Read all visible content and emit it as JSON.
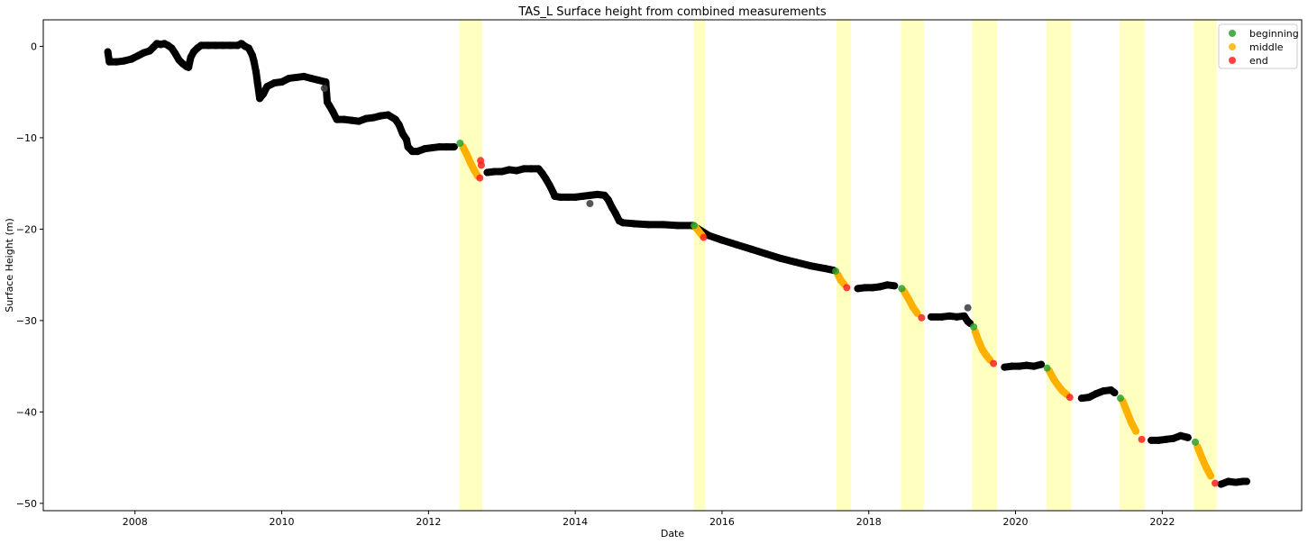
{
  "chart_data": {
    "type": "scatter",
    "title": "TAS_L Surface height from combined measurements",
    "xlabel": "Date",
    "ylabel": "Surface Height (m)",
    "xlim": [
      2006.75,
      2023.9
    ],
    "ylim": [
      -50.8,
      2.9
    ],
    "x_ticks": [
      2008,
      2010,
      2012,
      2014,
      2016,
      2018,
      2020,
      2022
    ],
    "y_ticks": [
      0,
      -10,
      -20,
      -30,
      -40,
      -50
    ],
    "legend_position": "top-right",
    "colors": {
      "background_series": "#000000",
      "outlier": "#444444",
      "beginning": "#2ca02c",
      "middle": "#ffb000",
      "end": "#ff2020",
      "highlight": "#ffffc0"
    },
    "highlight_periods": [
      [
        2012.42,
        2012.73
      ],
      [
        2015.62,
        2015.77
      ],
      [
        2017.56,
        2017.76
      ],
      [
        2018.44,
        2018.75
      ],
      [
        2019.41,
        2019.75
      ],
      [
        2020.42,
        2020.76
      ],
      [
        2021.42,
        2021.76
      ],
      [
        2022.43,
        2022.74
      ]
    ],
    "legend": [
      {
        "key": "beginning",
        "label": "beginning"
      },
      {
        "key": "middle",
        "label": "middle"
      },
      {
        "key": "end",
        "label": "end"
      }
    ],
    "series": [
      {
        "key": "background",
        "points": [
          [
            2007.63,
            -0.6
          ],
          [
            2007.65,
            -1.7
          ],
          [
            2007.75,
            -1.7
          ],
          [
            2007.85,
            -1.6
          ],
          [
            2007.95,
            -1.4
          ],
          [
            2008.05,
            -1.0
          ],
          [
            2008.12,
            -0.7
          ],
          [
            2008.2,
            -0.5
          ],
          [
            2008.25,
            -0.1
          ],
          [
            2008.3,
            0.3
          ],
          [
            2008.35,
            0.2
          ],
          [
            2008.4,
            0.3
          ],
          [
            2008.45,
            0.1
          ],
          [
            2008.5,
            -0.2
          ],
          [
            2008.55,
            -0.8
          ],
          [
            2008.6,
            -1.5
          ],
          [
            2008.65,
            -1.9
          ],
          [
            2008.7,
            -2.2
          ],
          [
            2008.73,
            -2.3
          ],
          [
            2008.76,
            -1.2
          ],
          [
            2008.8,
            -0.6
          ],
          [
            2008.85,
            -0.2
          ],
          [
            2008.9,
            0.1
          ],
          [
            2009.0,
            0.1
          ],
          [
            2009.1,
            0.1
          ],
          [
            2009.2,
            0.1
          ],
          [
            2009.3,
            0.1
          ],
          [
            2009.4,
            0.1
          ],
          [
            2009.45,
            0.3
          ],
          [
            2009.5,
            0.0
          ],
          [
            2009.55,
            -0.2
          ],
          [
            2009.6,
            -1.0
          ],
          [
            2009.62,
            -1.6
          ],
          [
            2009.65,
            -2.8
          ],
          [
            2009.67,
            -4.0
          ],
          [
            2009.7,
            -5.7
          ],
          [
            2009.75,
            -5.2
          ],
          [
            2009.8,
            -4.4
          ],
          [
            2009.9,
            -4.0
          ],
          [
            2010.0,
            -3.9
          ],
          [
            2010.1,
            -3.5
          ],
          [
            2010.2,
            -3.4
          ],
          [
            2010.3,
            -3.3
          ],
          [
            2010.4,
            -3.5
          ],
          [
            2010.5,
            -3.7
          ],
          [
            2010.6,
            -3.9
          ],
          [
            2010.62,
            -6.1
          ],
          [
            2010.65,
            -6.5
          ],
          [
            2010.7,
            -7.2
          ],
          [
            2010.75,
            -8.0
          ],
          [
            2010.85,
            -8.0
          ],
          [
            2010.95,
            -8.1
          ],
          [
            2011.05,
            -8.2
          ],
          [
            2011.15,
            -7.9
          ],
          [
            2011.25,
            -7.8
          ],
          [
            2011.35,
            -7.6
          ],
          [
            2011.45,
            -7.5
          ],
          [
            2011.55,
            -8.0
          ],
          [
            2011.6,
            -8.6
          ],
          [
            2011.65,
            -9.6
          ],
          [
            2011.7,
            -10.2
          ],
          [
            2011.72,
            -11.0
          ],
          [
            2011.78,
            -11.5
          ],
          [
            2011.85,
            -11.5
          ],
          [
            2011.95,
            -11.2
          ],
          [
            2012.05,
            -11.1
          ],
          [
            2012.15,
            -11.0
          ],
          [
            2012.25,
            -11.0
          ],
          [
            2012.35,
            -11.0
          ],
          [
            2012.8,
            -13.8
          ],
          [
            2012.9,
            -13.7
          ],
          [
            2013.0,
            -13.7
          ],
          [
            2013.1,
            -13.5
          ],
          [
            2013.2,
            -13.6
          ],
          [
            2013.3,
            -13.4
          ],
          [
            2013.4,
            -13.4
          ],
          [
            2013.5,
            -13.4
          ],
          [
            2013.55,
            -13.9
          ],
          [
            2013.6,
            -14.5
          ],
          [
            2013.65,
            -15.2
          ],
          [
            2013.7,
            -16.0
          ],
          [
            2013.72,
            -16.4
          ],
          [
            2013.8,
            -16.5
          ],
          [
            2013.9,
            -16.5
          ],
          [
            2014.0,
            -16.5
          ],
          [
            2014.1,
            -16.4
          ],
          [
            2014.2,
            -16.3
          ],
          [
            2014.3,
            -16.2
          ],
          [
            2014.4,
            -16.3
          ],
          [
            2014.45,
            -16.8
          ],
          [
            2014.5,
            -17.6
          ],
          [
            2014.55,
            -18.3
          ],
          [
            2014.6,
            -19.1
          ],
          [
            2014.65,
            -19.3
          ],
          [
            2014.8,
            -19.4
          ],
          [
            2015.0,
            -19.5
          ],
          [
            2015.2,
            -19.5
          ],
          [
            2015.4,
            -19.6
          ],
          [
            2015.6,
            -19.6
          ],
          [
            2015.82,
            -20.7
          ],
          [
            2016.0,
            -21.2
          ],
          [
            2016.2,
            -21.7
          ],
          [
            2016.4,
            -22.2
          ],
          [
            2016.6,
            -22.7
          ],
          [
            2016.8,
            -23.2
          ],
          [
            2017.0,
            -23.6
          ],
          [
            2017.2,
            -24.0
          ],
          [
            2017.4,
            -24.3
          ],
          [
            2017.52,
            -24.5
          ],
          [
            2017.85,
            -26.5
          ],
          [
            2017.95,
            -26.4
          ],
          [
            2018.05,
            -26.4
          ],
          [
            2018.15,
            -26.3
          ],
          [
            2018.25,
            -26.1
          ],
          [
            2018.35,
            -26.2
          ],
          [
            2018.85,
            -29.6
          ],
          [
            2019.0,
            -29.6
          ],
          [
            2019.1,
            -29.5
          ],
          [
            2019.2,
            -29.6
          ],
          [
            2019.3,
            -29.5
          ],
          [
            2019.35,
            -30.1
          ],
          [
            2019.38,
            -30.3
          ],
          [
            2019.85,
            -35.1
          ],
          [
            2019.95,
            -35.0
          ],
          [
            2020.05,
            -35.0
          ],
          [
            2020.15,
            -34.9
          ],
          [
            2020.25,
            -35.0
          ],
          [
            2020.35,
            -34.8
          ],
          [
            2020.9,
            -38.5
          ],
          [
            2021.0,
            -38.4
          ],
          [
            2021.1,
            -38.0
          ],
          [
            2021.2,
            -37.7
          ],
          [
            2021.3,
            -37.6
          ],
          [
            2021.35,
            -37.9
          ],
          [
            2021.85,
            -43.1
          ],
          [
            2021.95,
            -43.1
          ],
          [
            2022.05,
            -43.0
          ],
          [
            2022.15,
            -42.9
          ],
          [
            2022.25,
            -42.6
          ],
          [
            2022.35,
            -42.8
          ],
          [
            2022.8,
            -47.9
          ],
          [
            2022.9,
            -47.6
          ],
          [
            2023.0,
            -47.7
          ],
          [
            2023.1,
            -47.6
          ],
          [
            2023.15,
            -47.6
          ]
        ]
      },
      {
        "key": "outlier",
        "points": [
          [
            2010.58,
            -4.6
          ],
          [
            2014.2,
            -17.2
          ],
          [
            2019.35,
            -28.6
          ]
        ]
      },
      {
        "key": "middle",
        "points": [
          [
            2012.47,
            -11.0
          ],
          [
            2012.52,
            -11.8
          ],
          [
            2012.57,
            -12.7
          ],
          [
            2012.62,
            -13.5
          ],
          [
            2012.67,
            -14.2
          ],
          [
            2015.64,
            -19.8
          ],
          [
            2015.69,
            -20.3
          ],
          [
            2015.73,
            -20.7
          ],
          [
            2017.58,
            -25.0
          ],
          [
            2017.62,
            -25.6
          ],
          [
            2017.66,
            -26.0
          ],
          [
            2018.48,
            -26.8
          ],
          [
            2018.54,
            -27.6
          ],
          [
            2018.6,
            -28.5
          ],
          [
            2018.66,
            -29.2
          ],
          [
            2019.45,
            -31.2
          ],
          [
            2019.5,
            -32.3
          ],
          [
            2019.55,
            -33.2
          ],
          [
            2019.6,
            -33.8
          ],
          [
            2019.65,
            -34.3
          ],
          [
            2020.46,
            -35.5
          ],
          [
            2020.52,
            -36.4
          ],
          [
            2020.58,
            -37.1
          ],
          [
            2020.64,
            -37.7
          ],
          [
            2020.7,
            -38.1
          ],
          [
            2021.46,
            -38.8
          ],
          [
            2021.52,
            -40.0
          ],
          [
            2021.58,
            -41.2
          ],
          [
            2021.64,
            -42.1
          ],
          [
            2022.48,
            -43.8
          ],
          [
            2022.54,
            -45.0
          ],
          [
            2022.6,
            -46.1
          ],
          [
            2022.66,
            -47.0
          ]
        ]
      },
      {
        "key": "beginning",
        "points": [
          [
            2012.43,
            -10.6
          ],
          [
            2015.62,
            -19.6
          ],
          [
            2017.55,
            -24.6
          ],
          [
            2018.45,
            -26.5
          ],
          [
            2019.43,
            -30.7
          ],
          [
            2020.43,
            -35.2
          ],
          [
            2021.43,
            -38.5
          ],
          [
            2022.45,
            -43.3
          ]
        ]
      },
      {
        "key": "end",
        "points": [
          [
            2012.7,
            -14.4
          ],
          [
            2012.72,
            -13.0
          ],
          [
            2012.71,
            -12.5
          ],
          [
            2015.75,
            -20.9
          ],
          [
            2017.7,
            -26.4
          ],
          [
            2018.72,
            -29.7
          ],
          [
            2019.7,
            -34.7
          ],
          [
            2020.74,
            -38.4
          ],
          [
            2021.72,
            -43.0
          ],
          [
            2022.72,
            -47.8
          ]
        ]
      }
    ]
  }
}
